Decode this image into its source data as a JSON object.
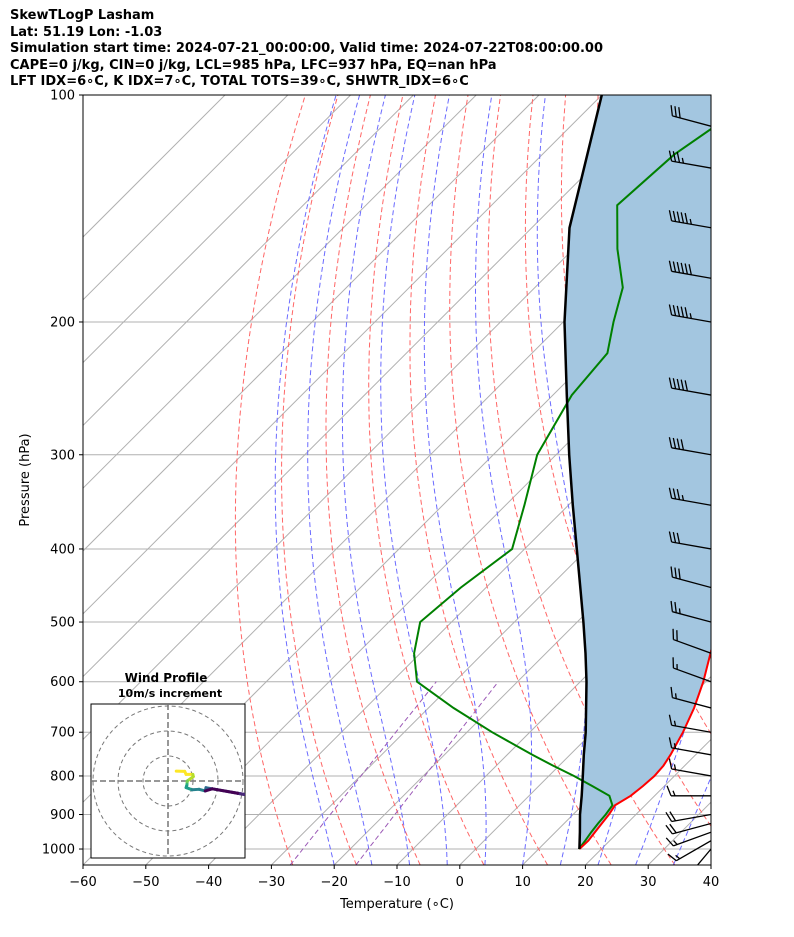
{
  "header": {
    "line1": "SkewTLogP Lasham",
    "line2": "Lat: 51.19   Lon: -1.03",
    "line3": "Simulation start time: 2024-07-21_00:00:00, Valid time: 2024-07-22T08:00:00.00",
    "line4": "CAPE=0 j/kg, CIN=0 j/kg, LCL=985 hPa, LFC=937 hPa, EQ=nan hPa",
    "line5": "LFT IDX=6∘C, K IDX=7∘C, TOTAL TOTS=39∘C, SHWTR_IDX=6∘C"
  },
  "chart_data": {
    "type": "line",
    "subtype": "skew-t log-p",
    "xlabel": "Temperature (∘C)",
    "ylabel": "Pressure (hPa)",
    "xlim": [
      -60,
      40
    ],
    "ylim": [
      1050,
      100
    ],
    "y_scale": "log",
    "x_ticks": [
      "−60",
      "−50",
      "−40",
      "−30",
      "−20",
      "−10",
      "0",
      "10",
      "20",
      "30",
      "40"
    ],
    "y_ticks": [
      "100",
      "200",
      "300",
      "400",
      "500",
      "600",
      "700",
      "800",
      "900",
      "1000"
    ],
    "grid": true,
    "colors": {
      "temperature": "#ff0000",
      "dewpoint": "#008000",
      "parcel": "#000000",
      "cin_shade": "#a3c6e0",
      "dry_adiabats": "#ff6666",
      "moist_adiabats": "#6b6bff",
      "mixing_lines": "#9b59b6",
      "isotherms": "#b0b0b0"
    },
    "series": [
      {
        "name": "temperature",
        "pressure": [
          1000,
          975,
          950,
          925,
          900,
          875,
          850,
          825,
          800,
          775,
          750,
          700,
          650,
          600,
          550,
          500,
          450,
          400,
          350,
          300,
          275,
          250,
          225,
          200,
          180,
          160,
          140,
          120,
          110,
          100
        ],
        "values": [
          16.5,
          16.6,
          16.3,
          16.0,
          15.7,
          15.2,
          16.2,
          16.6,
          16.8,
          16.6,
          16.0,
          14.4,
          12.3,
          9.6,
          6.2,
          2.5,
          -1.7,
          -6.6,
          -12.2,
          -19.1,
          -22.9,
          -27.2,
          -32.1,
          -37.4,
          -40.6,
          -45.5,
          -50.1,
          -53.8,
          -55.5,
          -56.6
        ]
      },
      {
        "name": "dewpoint",
        "pressure": [
          1000,
          975,
          950,
          925,
          900,
          875,
          850,
          825,
          800,
          775,
          750,
          700,
          650,
          600,
          550,
          500,
          450,
          400,
          350,
          300,
          250,
          220,
          200,
          180,
          160,
          140,
          120,
          110,
          100
        ],
        "values": [
          16.4,
          16.1,
          15.7,
          15.4,
          15.2,
          14.8,
          12.8,
          8.5,
          4.0,
          -1.0,
          -6.0,
          -16.0,
          -26.0,
          -36.0,
          -41.0,
          -45.0,
          -44.0,
          -42.0,
          -47.0,
          -53.0,
          -57.0,
          -58.0,
          -62.0,
          -66.0,
          -73.0,
          -80.0,
          -79.0,
          -77.0,
          -74.0
        ]
      },
      {
        "name": "parcel",
        "pressure": [
          1000,
          950,
          900,
          850,
          800,
          750,
          700,
          650,
          600,
          550,
          500,
          450,
          400,
          350,
          300,
          250,
          200,
          150,
          100
        ],
        "values": [
          16.5,
          13.9,
          11.1,
          8.4,
          5.4,
          2.2,
          -1.1,
          -4.9,
          -9.0,
          -13.7,
          -19.0,
          -25.0,
          -31.7,
          -39.3,
          -47.9,
          -57.8,
          -69.8,
          -84.0,
          -100.0
        ]
      }
    ],
    "wind_barbs": {
      "pressure": [
        1000,
        975,
        950,
        925,
        900,
        850,
        800,
        750,
        700,
        650,
        600,
        550,
        500,
        450,
        400,
        350,
        300,
        250,
        200,
        175,
        150,
        125,
        110
      ],
      "speed_kt": [
        10,
        15,
        15,
        20,
        20,
        15,
        15,
        15,
        15,
        15,
        15,
        20,
        25,
        30,
        30,
        35,
        40,
        50,
        55,
        60,
        55,
        35,
        30
      ],
      "direction_deg": [
        220,
        240,
        250,
        255,
        260,
        270,
        280,
        280,
        280,
        285,
        290,
        290,
        285,
        285,
        280,
        280,
        280,
        280,
        280,
        280,
        280,
        280,
        285
      ]
    },
    "inset": {
      "title": "Wind Profile",
      "subtitle": "10m/s increment",
      "type": "hodograph"
    }
  }
}
